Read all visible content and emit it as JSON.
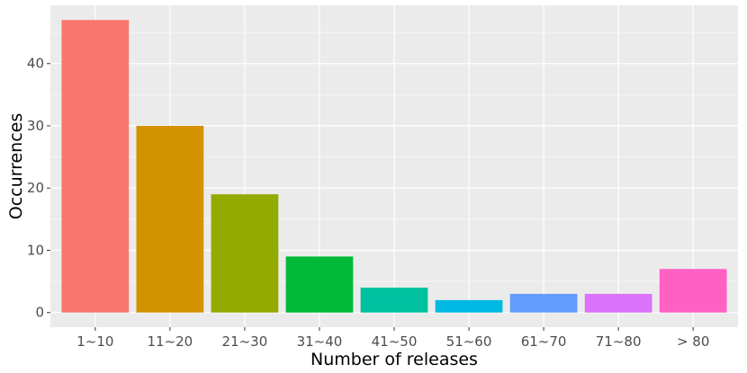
{
  "chart_data": {
    "type": "bar",
    "title": "",
    "xlabel": "Number of releases",
    "ylabel": "Occurrences",
    "categories": [
      "1~10",
      "11~20",
      "21~30",
      "31~40",
      "41~50",
      "51~60",
      "61~70",
      "71~80",
      "> 80"
    ],
    "values": [
      47,
      30,
      19,
      9,
      4,
      2,
      3,
      3,
      7
    ],
    "colors": [
      "#F8766D",
      "#D39200",
      "#93AA00",
      "#00BA38",
      "#00C19F",
      "#00B9E3",
      "#619CFF",
      "#DB72FB",
      "#FF61C3"
    ],
    "yticks": [
      0,
      10,
      20,
      30,
      40
    ],
    "ylim": [
      -2.35,
      49.35
    ],
    "grid": true,
    "legend": "none",
    "panel_color": "#EBEBEB",
    "grid_color": "#FFFFFF"
  }
}
